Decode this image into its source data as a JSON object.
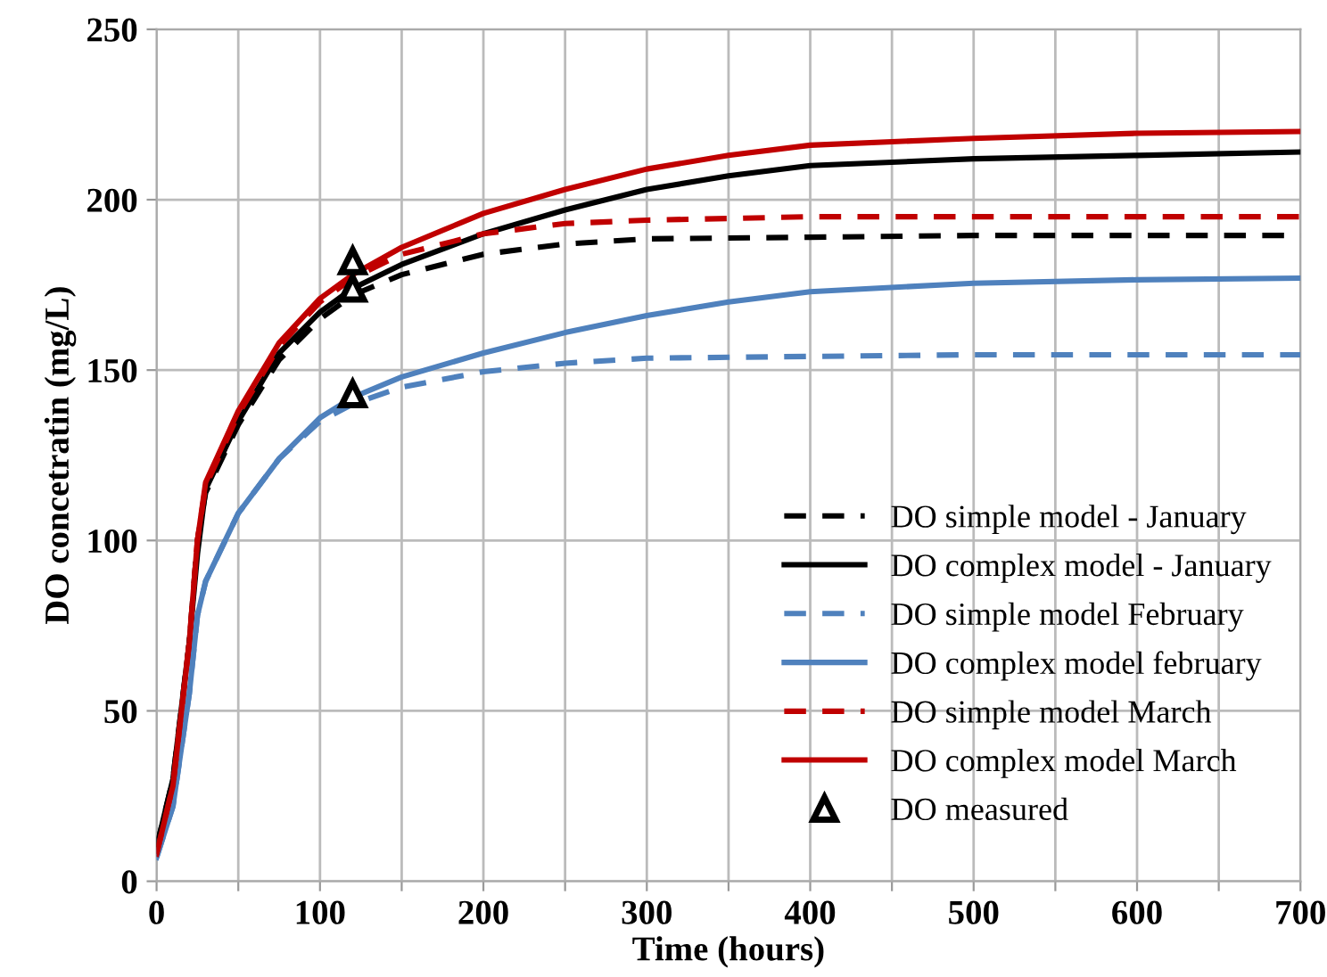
{
  "chart_data": {
    "type": "line",
    "xlabel": "Time (hours)",
    "ylabel": "DO concetratin (mg/L)",
    "xlim": [
      0,
      700
    ],
    "ylim": [
      0,
      250
    ],
    "xticks": [
      0,
      {
        "value": 50,
        "label": null
      },
      100,
      {
        "value": 150,
        "label": null
      },
      200,
      {
        "value": 250,
        "label": null
      },
      300,
      {
        "value": 350,
        "label": null
      },
      400,
      {
        "value": 450,
        "label": null
      },
      500,
      {
        "value": 550,
        "label": null
      },
      600,
      {
        "value": 650,
        "label": null
      },
      700
    ],
    "yticks": [
      0,
      50,
      100,
      150,
      200,
      250
    ],
    "grid": true,
    "legend": "bottom right",
    "series": [
      {
        "name": "DO simple model - January",
        "color": "#000000",
        "line_style": "dashed",
        "x": [
          0,
          10,
          20,
          25,
          30,
          50,
          75,
          100,
          120,
          150,
          200,
          250,
          300,
          400,
          500,
          600,
          700
        ],
        "values": [
          10,
          30,
          70,
          100,
          114,
          134,
          153,
          165,
          172,
          178,
          184,
          187,
          188.5,
          189,
          189.5,
          189.5,
          189.5
        ]
      },
      {
        "name": "DO complex model - January",
        "color": "#000000",
        "line_style": "solid",
        "x": [
          0,
          10,
          20,
          25,
          30,
          50,
          75,
          100,
          120,
          150,
          200,
          250,
          300,
          350,
          400,
          500,
          600,
          700
        ],
        "values": [
          10,
          30,
          70,
          96,
          115,
          135,
          155,
          167,
          174,
          181,
          190,
          197,
          203,
          207,
          210,
          212,
          213,
          214
        ]
      },
      {
        "name": "DO simple model February",
        "color": "#4f81bd",
        "line_style": "dashed",
        "x": [
          0,
          10,
          20,
          25,
          30,
          50,
          75,
          100,
          120,
          150,
          200,
          250,
          300,
          400,
          500,
          600,
          700
        ],
        "values": [
          7,
          22,
          55,
          78,
          88,
          108,
          124,
          135,
          140,
          145,
          149.5,
          152,
          153.5,
          154,
          154.5,
          154.5,
          154.5
        ]
      },
      {
        "name": "DO complex model february",
        "color": "#4f81bd",
        "line_style": "solid",
        "x": [
          0,
          10,
          20,
          25,
          30,
          50,
          75,
          100,
          120,
          150,
          200,
          250,
          300,
          350,
          400,
          500,
          600,
          700
        ],
        "values": [
          7,
          22,
          55,
          78,
          88,
          108,
          124,
          136,
          142,
          148,
          155,
          161,
          166,
          170,
          173,
          175.5,
          176.5,
          177
        ]
      },
      {
        "name": "DO simple model March",
        "color": "#c00000",
        "line_style": "dashed",
        "x": [
          0,
          10,
          20,
          25,
          30,
          50,
          75,
          100,
          120,
          150,
          200,
          250,
          300,
          400,
          500,
          600,
          700
        ],
        "values": [
          8,
          28,
          70,
          100,
          116,
          137,
          157,
          170,
          177,
          184,
          190,
          193,
          194,
          195,
          195,
          195,
          195
        ]
      },
      {
        "name": "DO complex model March",
        "color": "#c00000",
        "line_style": "solid",
        "x": [
          0,
          10,
          20,
          25,
          30,
          50,
          75,
          100,
          120,
          150,
          200,
          250,
          300,
          350,
          400,
          500,
          600,
          700
        ],
        "values": [
          8,
          28,
          70,
          100,
          117,
          138,
          158,
          171,
          178,
          186,
          196,
          203,
          209,
          213,
          216,
          218,
          219.5,
          220
        ]
      },
      {
        "name": "DO measured",
        "type": "scatter",
        "marker": "triangle",
        "color": "#000000",
        "x": [
          120,
          120,
          120
        ],
        "values": [
          182,
          174,
          143
        ]
      }
    ]
  }
}
